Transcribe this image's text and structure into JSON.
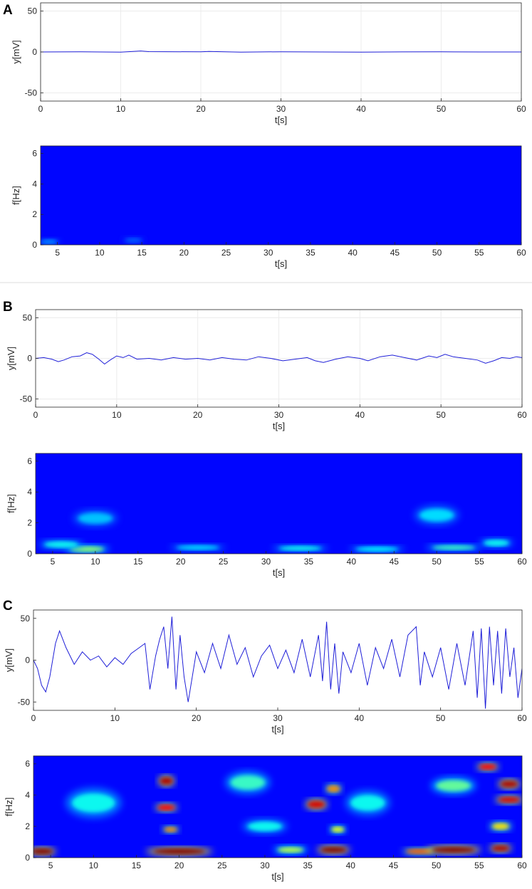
{
  "panels": [
    {
      "letter": "A"
    },
    {
      "letter": "B"
    },
    {
      "letter": "C"
    }
  ],
  "chart_data": [
    {
      "type": "line",
      "panel": "A",
      "color": "#1f1fd8",
      "xlabel": "t[s]",
      "ylabel": "y[mV]",
      "xlim": [
        0,
        60
      ],
      "ylim": [
        -60,
        60
      ],
      "xticks": [
        0,
        10,
        20,
        30,
        40,
        50,
        60
      ],
      "yticks": [
        -50,
        0,
        50
      ],
      "grid": true,
      "x": [
        0,
        5,
        10,
        12.5,
        13.5,
        20,
        21,
        25,
        30,
        35,
        40,
        45,
        50,
        55,
        60
      ],
      "y": [
        0,
        0.3,
        -0.3,
        1.2,
        0.4,
        0.2,
        0.6,
        -0.2,
        0.3,
        0,
        -0.3,
        0.1,
        0.2,
        0,
        0
      ]
    },
    {
      "type": "heatmap",
      "panel": "A",
      "colormap": "jet",
      "xlabel": "t[s]",
      "ylabel": "f[Hz]",
      "xlim": [
        3,
        60
      ],
      "ylim": [
        0,
        6.5
      ],
      "xticks": [
        5,
        10,
        15,
        20,
        25,
        30,
        35,
        40,
        45,
        50,
        55,
        60
      ],
      "yticks": [
        0,
        2,
        4,
        6
      ],
      "hotspots": [
        [
          4,
          0.2,
          2,
          0.3,
          0.15
        ],
        [
          14,
          0.3,
          2,
          0.3,
          0.1
        ]
      ]
    },
    {
      "type": "line",
      "panel": "B",
      "color": "#1f1fd8",
      "xlabel": "t[s]",
      "ylabel": "y[mV]",
      "xlim": [
        0,
        60
      ],
      "ylim": [
        -60,
        60
      ],
      "xticks": [
        0,
        10,
        20,
        30,
        40,
        50,
        60
      ],
      "yticks": [
        -50,
        0,
        50
      ],
      "grid": true,
      "x": [
        0,
        1,
        2,
        2.8,
        3.5,
        4.5,
        5.5,
        6.3,
        7,
        7.8,
        8.5,
        9.2,
        10,
        10.8,
        11.5,
        12.5,
        14,
        15.5,
        17,
        18.5,
        20,
        21.5,
        23,
        24.5,
        26,
        27.5,
        29,
        30.5,
        32,
        33.5,
        34.5,
        35.5,
        37,
        38.5,
        40,
        41,
        42.5,
        44,
        45.5,
        47,
        48.5,
        49.5,
        50.5,
        51.5,
        53,
        54.5,
        55.5,
        56.5,
        57.5,
        58.5,
        59.3,
        60
      ],
      "y": [
        0,
        1,
        -1,
        -4,
        -2,
        2,
        3,
        7,
        5,
        -1,
        -7,
        -2,
        3,
        1,
        4,
        -1,
        0,
        -2,
        1,
        -1,
        0,
        -2,
        1,
        -1,
        -2,
        2,
        0,
        -3,
        -1,
        1,
        -3,
        -5,
        -1,
        2,
        0,
        -3,
        2,
        4,
        1,
        -2,
        3,
        1,
        5,
        2,
        0,
        -2,
        -6,
        -3,
        1,
        0,
        2,
        1
      ]
    },
    {
      "type": "heatmap",
      "panel": "B",
      "colormap": "jet",
      "xlabel": "t[s]",
      "ylabel": "f[Hz]",
      "xlim": [
        3,
        60
      ],
      "ylim": [
        0,
        6.5
      ],
      "xticks": [
        5,
        10,
        15,
        20,
        25,
        30,
        35,
        40,
        45,
        50,
        55,
        60
      ],
      "yticks": [
        0,
        2,
        4,
        6
      ],
      "hotspots": [
        [
          9,
          0.3,
          4,
          0.35,
          0.45
        ],
        [
          6,
          0.6,
          4,
          0.4,
          0.3
        ],
        [
          10,
          2.3,
          4,
          0.7,
          0.22
        ],
        [
          22,
          0.4,
          5,
          0.3,
          0.25
        ],
        [
          34,
          0.35,
          5,
          0.3,
          0.3
        ],
        [
          43,
          0.3,
          5,
          0.3,
          0.28
        ],
        [
          52,
          0.4,
          5,
          0.3,
          0.35
        ],
        [
          50,
          2.5,
          4,
          0.8,
          0.25
        ],
        [
          57,
          0.7,
          3,
          0.4,
          0.3
        ]
      ]
    },
    {
      "type": "line",
      "panel": "C",
      "color": "#1f1fd8",
      "xlabel": "t[s]",
      "ylabel": "y[mV]",
      "xlim": [
        0,
        60
      ],
      "ylim": [
        -60,
        60
      ],
      "xticks": [
        0,
        10,
        20,
        30,
        40,
        50,
        60
      ],
      "yticks": [
        -50,
        0,
        50
      ],
      "grid": false,
      "x": [
        0,
        0.5,
        1,
        1.5,
        2,
        2.7,
        3.2,
        4,
        5,
        6,
        7,
        8,
        9,
        10,
        11,
        12,
        13,
        13.7,
        14.3,
        15,
        15.5,
        16,
        16.5,
        17,
        17.5,
        18,
        18.5,
        19,
        20,
        21,
        22,
        23,
        24,
        25,
        26,
        27,
        28,
        29,
        30,
        31,
        32,
        33,
        34,
        35,
        35.5,
        36,
        36.5,
        37,
        37.5,
        38,
        39,
        40,
        41,
        42,
        43,
        44,
        45,
        46,
        47,
        47.5,
        48,
        49,
        50,
        51,
        52,
        53,
        54,
        54.5,
        55,
        55.5,
        56,
        56.5,
        57,
        57.5,
        58,
        58.5,
        59,
        59.5,
        60
      ],
      "y": [
        0,
        -10,
        -30,
        -38,
        -20,
        20,
        35,
        15,
        -5,
        10,
        0,
        5,
        -8,
        3,
        -5,
        8,
        15,
        20,
        -35,
        5,
        25,
        40,
        -10,
        52,
        -35,
        30,
        -20,
        -50,
        10,
        -15,
        20,
        -10,
        30,
        -5,
        15,
        -20,
        5,
        18,
        -10,
        12,
        -15,
        25,
        -20,
        30,
        -25,
        46,
        -35,
        20,
        -40,
        10,
        -15,
        20,
        -30,
        15,
        -10,
        25,
        -20,
        30,
        40,
        -30,
        10,
        -20,
        15,
        -35,
        20,
        -30,
        35,
        -45,
        38,
        -58,
        40,
        -30,
        35,
        -40,
        38,
        -20,
        15,
        -45,
        -10
      ]
    },
    {
      "type": "heatmap",
      "panel": "C",
      "colormap": "jet",
      "xlabel": "t[s]",
      "ylabel": "f[Hz]",
      "xlim": [
        3,
        60
      ],
      "ylim": [
        0,
        6.5
      ],
      "xticks": [
        5,
        10,
        15,
        20,
        25,
        30,
        35,
        40,
        45,
        50,
        55,
        60
      ],
      "yticks": [
        0,
        2,
        4,
        6
      ],
      "hotspots": [
        [
          4,
          0.4,
          2.5,
          0.35,
          1.0
        ],
        [
          10,
          3.5,
          5,
          1.2,
          0.3
        ],
        [
          20,
          0.4,
          6,
          0.35,
          1.0
        ],
        [
          18.5,
          4.9,
          1.5,
          0.45,
          0.95
        ],
        [
          18.5,
          3.2,
          2,
          0.35,
          0.85
        ],
        [
          19,
          1.8,
          1.5,
          0.3,
          0.7
        ],
        [
          28,
          4.8,
          4,
          0.9,
          0.35
        ],
        [
          30,
          2.0,
          4,
          0.6,
          0.3
        ],
        [
          33,
          0.5,
          3,
          0.35,
          0.5
        ],
        [
          38,
          0.5,
          3,
          0.35,
          1.0
        ],
        [
          36,
          3.4,
          2,
          0.45,
          0.9
        ],
        [
          38,
          4.4,
          1.5,
          0.4,
          0.7
        ],
        [
          38.5,
          1.8,
          1.5,
          0.35,
          0.55
        ],
        [
          42,
          3.5,
          4,
          1.0,
          0.3
        ],
        [
          48,
          0.4,
          3,
          0.3,
          0.75
        ],
        [
          52,
          0.5,
          5,
          0.35,
          1.0
        ],
        [
          52,
          4.6,
          4,
          0.7,
          0.4
        ],
        [
          56,
          5.8,
          2,
          0.35,
          0.85
        ],
        [
          58.5,
          4.7,
          2,
          0.4,
          0.95
        ],
        [
          58.5,
          3.7,
          2.5,
          0.35,
          0.9
        ],
        [
          57.5,
          2.0,
          2,
          0.4,
          0.6
        ],
        [
          57.5,
          0.6,
          2,
          0.35,
          0.95
        ]
      ]
    }
  ]
}
